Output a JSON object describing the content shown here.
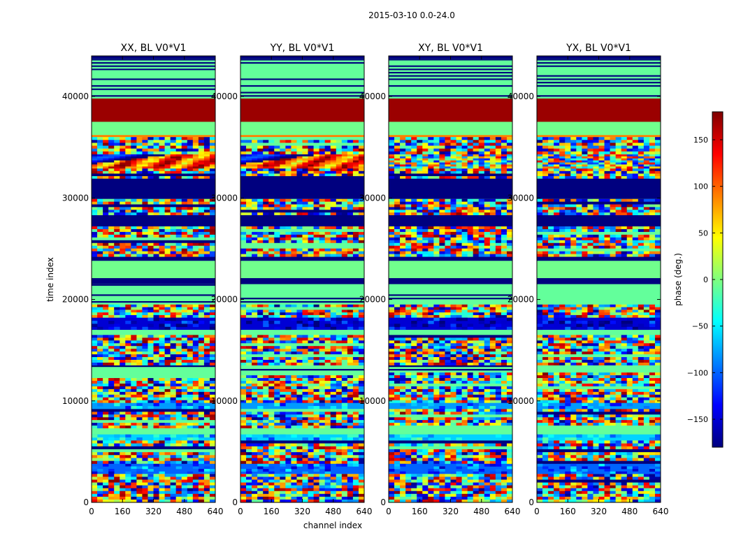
{
  "chart_data": {
    "type": "heatmap",
    "suptitle": "2015-03-10 0.0-24.0",
    "xlabel": "channel index",
    "ylabel": "time index",
    "xlim": [
      0,
      640
    ],
    "ylim": [
      0,
      44000
    ],
    "xticks": [
      0,
      160,
      320,
      480,
      640
    ],
    "yticks": [
      0,
      10000,
      20000,
      30000,
      40000
    ],
    "panels": [
      {
        "title": "XX, BL V0*V1",
        "seed": 11
      },
      {
        "title": "YY, BL V0*V1",
        "seed": 23
      },
      {
        "title": "XY, BL V0*V1",
        "seed": 37
      },
      {
        "title": "YX, BL V0*V1",
        "seed": 53
      }
    ],
    "colorbar": {
      "label": "phase (deg.)",
      "range": [
        -180,
        180
      ],
      "ticks": [
        150,
        100,
        50,
        0,
        -50,
        -100,
        -150
      ],
      "tick_labels": [
        "150",
        "100",
        "50",
        "0",
        "−50",
        "−100",
        "−150"
      ],
      "colormap": [
        "#00007f",
        "#0000ff",
        "#007fff",
        "#00ffff",
        "#7fff7f",
        "#ffff00",
        "#ff7f00",
        "#ff0000",
        "#7f0000"
      ]
    },
    "bands": [
      {
        "t0": 43700,
        "t1": 44000,
        "kind": "solid",
        "phase": -180
      },
      {
        "t0": 42100,
        "t1": 43700,
        "kind": "stripes",
        "phase": -10
      },
      {
        "t0": 39800,
        "t1": 42100,
        "kind": "stripes",
        "phase": -10
      },
      {
        "t0": 37500,
        "t1": 39800,
        "kind": "solid",
        "phase": 170
      },
      {
        "t0": 36200,
        "t1": 37500,
        "kind": "solid",
        "phase": -5
      },
      {
        "t0": 36000,
        "t1": 36200,
        "kind": "solid",
        "phase": 90
      },
      {
        "t0": 34300,
        "t1": 36000,
        "kind": "noise",
        "phase": 0
      },
      {
        "t0": 32900,
        "t1": 34300,
        "kind": "fringe",
        "phase": 0
      },
      {
        "t0": 31900,
        "t1": 32900,
        "kind": "noise",
        "phase": 0
      },
      {
        "t0": 29900,
        "t1": 31900,
        "kind": "solid",
        "phase": -180
      },
      {
        "t0": 28300,
        "t1": 29900,
        "kind": "noise",
        "phase": 0
      },
      {
        "t0": 27200,
        "t1": 28300,
        "kind": "solid",
        "phase": -180
      },
      {
        "t0": 24200,
        "t1": 27200,
        "kind": "noise",
        "phase": 0
      },
      {
        "t0": 23800,
        "t1": 24200,
        "kind": "solid",
        "phase": -180
      },
      {
        "t0": 22100,
        "t1": 23800,
        "kind": "solid",
        "phase": -5
      },
      {
        "t0": 21500,
        "t1": 22100,
        "kind": "solid",
        "phase": -180
      },
      {
        "t0": 19500,
        "t1": 21500,
        "kind": "stripes",
        "phase": -10
      },
      {
        "t0": 18200,
        "t1": 19500,
        "kind": "noise",
        "phase": 0
      },
      {
        "t0": 17000,
        "t1": 18200,
        "kind": "mixed",
        "phase": -150
      },
      {
        "t0": 16500,
        "t1": 17000,
        "kind": "solid",
        "phase": -10
      },
      {
        "t0": 13500,
        "t1": 16500,
        "kind": "noise",
        "phase": 0
      },
      {
        "t0": 12800,
        "t1": 13500,
        "kind": "stripes",
        "phase": -10
      },
      {
        "t0": 9800,
        "t1": 12800,
        "kind": "noise",
        "phase": 0
      },
      {
        "t0": 9200,
        "t1": 9800,
        "kind": "mixed",
        "phase": -80
      },
      {
        "t0": 7300,
        "t1": 9200,
        "kind": "noise",
        "phase": 0
      },
      {
        "t0": 6700,
        "t1": 7300,
        "kind": "solid",
        "phase": -10
      },
      {
        "t0": 6100,
        "t1": 6700,
        "kind": "mixed",
        "phase": -60
      },
      {
        "t0": 3800,
        "t1": 6100,
        "kind": "noise",
        "phase": 0
      },
      {
        "t0": 2800,
        "t1": 3800,
        "kind": "mixed",
        "phase": -100
      },
      {
        "t0": 0,
        "t1": 2800,
        "kind": "noise",
        "phase": 0
      }
    ]
  }
}
